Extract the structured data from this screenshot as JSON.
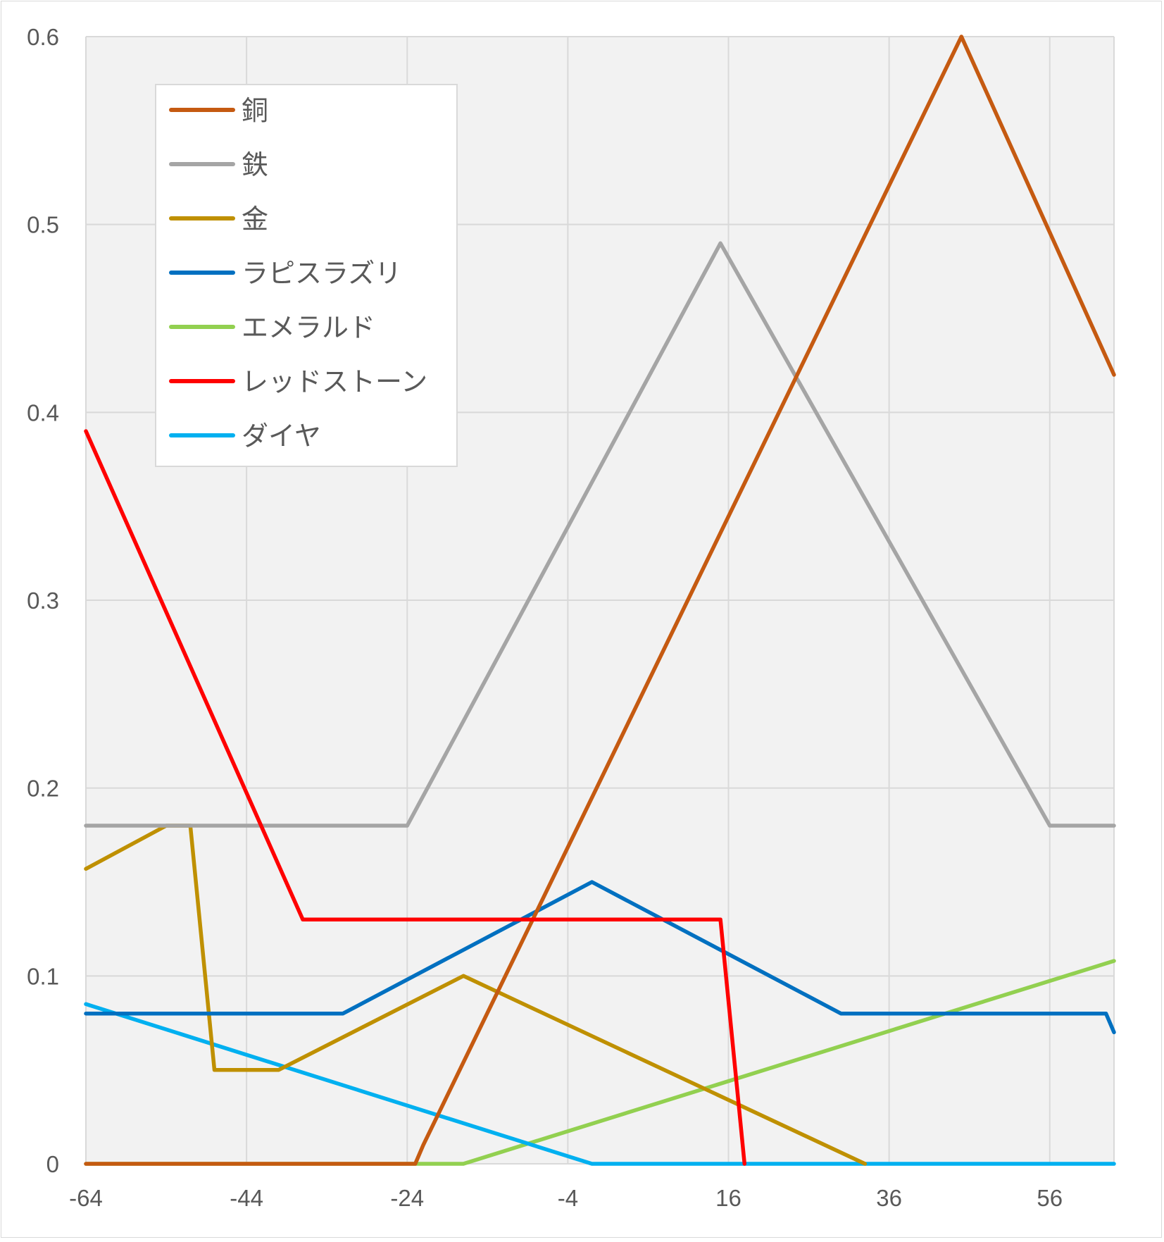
{
  "chart_data": {
    "type": "line",
    "title": "",
    "xlabel": "",
    "ylabel": "",
    "xlim": [
      -64,
      64
    ],
    "ylim": [
      0,
      0.6
    ],
    "x_ticks": [
      -64,
      -44,
      -24,
      -4,
      16,
      36,
      56
    ],
    "x_tick_labels": [
      "-64",
      "-44",
      "-24",
      "-4",
      "16",
      "36",
      "56"
    ],
    "y_ticks": [
      0,
      0.1,
      0.2,
      0.3,
      0.4,
      0.5,
      0.6
    ],
    "y_tick_labels": [
      "0",
      "0.1",
      "0.2",
      "0.3",
      "0.4",
      "0.5",
      "0.6"
    ],
    "grid": true,
    "plot_background": "#f2f2f2",
    "legend_position": "top-left inside",
    "series": [
      {
        "name": "銅",
        "color": "#c55a11",
        "points": [
          [
            -64,
            0
          ],
          [
            -23,
            0
          ],
          [
            -22,
            0.01
          ],
          [
            45,
            0.6
          ],
          [
            64,
            0.42
          ]
        ]
      },
      {
        "name": "鉄",
        "color": "#a5a5a5",
        "points": [
          [
            -64,
            0.18
          ],
          [
            -24,
            0.18
          ],
          [
            15,
            0.49
          ],
          [
            56,
            0.18
          ],
          [
            64,
            0.18
          ]
        ]
      },
      {
        "name": "金",
        "color": "#bf9000",
        "points": [
          [
            -64,
            0.157
          ],
          [
            -54,
            0.18
          ],
          [
            -51,
            0.18
          ],
          [
            -48,
            0.05
          ],
          [
            -44,
            0.05
          ],
          [
            -40,
            0.05
          ],
          [
            -17,
            0.1
          ],
          [
            33,
            0
          ]
        ]
      },
      {
        "name": "ラピスラズリ",
        "color": "#0070c0",
        "points": [
          [
            -64,
            0.08
          ],
          [
            -32,
            0.08
          ],
          [
            -1,
            0.15
          ],
          [
            30,
            0.08
          ],
          [
            63,
            0.08
          ],
          [
            64,
            0.07
          ]
        ]
      },
      {
        "name": "エメラルド",
        "color": "#92d050",
        "points": [
          [
            -64,
            0
          ],
          [
            -17,
            0
          ],
          [
            64,
            0.108
          ]
        ]
      },
      {
        "name": "レッドストーン",
        "color": "#ff0000",
        "points": [
          [
            -64,
            0.39
          ],
          [
            -37,
            0.13
          ],
          [
            15,
            0.13
          ],
          [
            18,
            0
          ]
        ]
      },
      {
        "name": "ダイヤ",
        "color": "#00b0f0",
        "points": [
          [
            -64,
            0.085
          ],
          [
            -1,
            0
          ],
          [
            64,
            0
          ]
        ]
      }
    ]
  }
}
